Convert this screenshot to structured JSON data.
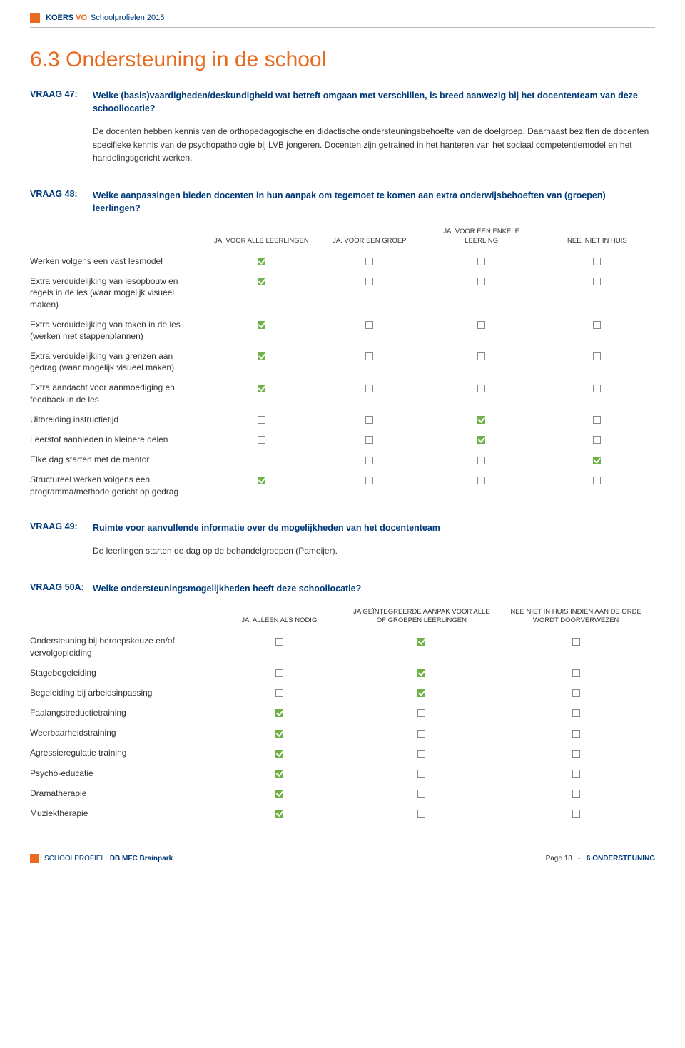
{
  "header": {
    "koers": "KOERS",
    "vo": "VO",
    "sub": "Schoolprofielen 2015"
  },
  "section_title": "6.3 Ondersteuning in de school",
  "v47": {
    "label": "VRAAG 47:",
    "question": "Welke (basis)vaardigheden/deskundigheid wat betreft omgaan met verschillen, is breed aanwezig bij het docententeam van deze schoollocatie?",
    "body": "De docenten hebben kennis van de orthopedagogische en didactische ondersteuningsbehoefte van de doelgroep. Daarnaast bezitten de docenten specifieke kennis van de psychopathologie bij LVB jongeren. Docenten zijn getrained in het hanteren van het sociaal competentiemodel en het handelingsgericht werken."
  },
  "v48": {
    "label": "VRAAG 48:",
    "question": "Welke aanpassingen bieden docenten in hun aanpak om tegemoet te komen aan extra onderwijsbehoeften van (groepen) leerlingen?",
    "columns": [
      "JA, VOOR ALLE LEERLINGEN",
      "JA, VOOR EEN GROEP",
      "JA, VOOR EEN ENKELE LEERLING",
      "NEE, NIET IN HUIS"
    ],
    "rows": [
      {
        "label": "Werken volgens een vast lesmodel",
        "vals": [
          true,
          false,
          false,
          false
        ]
      },
      {
        "label": "Extra verduidelijking van lesopbouw en regels in de les (waar mogelijk visueel maken)",
        "vals": [
          true,
          false,
          false,
          false
        ]
      },
      {
        "label": "Extra verduidelijking van taken in de les (werken met stappenplannen)",
        "vals": [
          true,
          false,
          false,
          false
        ]
      },
      {
        "label": "Extra verduidelijking van grenzen aan gedrag (waar mogelijk visueel maken)",
        "vals": [
          true,
          false,
          false,
          false
        ]
      },
      {
        "label": "Extra aandacht voor aanmoediging en feedback in de les",
        "vals": [
          true,
          false,
          false,
          false
        ]
      },
      {
        "label": "Uitbreiding instructietijd",
        "vals": [
          false,
          false,
          true,
          false
        ]
      },
      {
        "label": "Leerstof aanbieden in kleinere delen",
        "vals": [
          false,
          false,
          true,
          false
        ]
      },
      {
        "label": "Elke dag starten met de mentor",
        "vals": [
          false,
          false,
          false,
          true
        ]
      },
      {
        "label": "Structureel werken volgens een programma/methode gericht op gedrag",
        "vals": [
          true,
          false,
          false,
          false
        ]
      }
    ]
  },
  "v49": {
    "label": "VRAAG 49:",
    "question": "Ruimte voor aanvullende informatie over de mogelijkheden van het docententeam",
    "answer": "De leerlingen starten de dag op de behandelgroepen (Pameijer)."
  },
  "v50a": {
    "label": "VRAAG 50A:",
    "question": "Welke ondersteuningsmogelijkheden heeft deze schoollocatie?",
    "columns": [
      "JA, ALLEEN ALS NODIG",
      "JA GEÏNTEGREERDE AANPAK VOOR ALLE OF GROEPEN LEERLINGEN",
      "NEE NIET IN HUIS INDIEN AAN DE ORDE WORDT DOORVERWEZEN"
    ],
    "rows": [
      {
        "label": "Ondersteuning bij beroepskeuze en/of vervolgopleiding",
        "vals": [
          false,
          true,
          false
        ]
      },
      {
        "label": "Stagebegeleiding",
        "vals": [
          false,
          true,
          false
        ]
      },
      {
        "label": "Begeleiding bij arbeidsinpassing",
        "vals": [
          false,
          true,
          false
        ]
      },
      {
        "label": "Faalangstreductietraining",
        "vals": [
          true,
          false,
          false
        ]
      },
      {
        "label": "Weerbaarheidstraining",
        "vals": [
          true,
          false,
          false
        ]
      },
      {
        "label": "Agressieregulatie training",
        "vals": [
          true,
          false,
          false
        ]
      },
      {
        "label": "Psycho-educatie",
        "vals": [
          true,
          false,
          false
        ]
      },
      {
        "label": "Dramatherapie",
        "vals": [
          true,
          false,
          false
        ]
      },
      {
        "label": "Muziektherapie",
        "vals": [
          true,
          false,
          false
        ]
      }
    ]
  },
  "footer": {
    "profile_label": "SCHOOLPROFIEL:",
    "profile_value": "DB MFC Brainpark",
    "page_label": "Page 18",
    "sep": "-",
    "section": "6 ONDERSTEUNING"
  }
}
